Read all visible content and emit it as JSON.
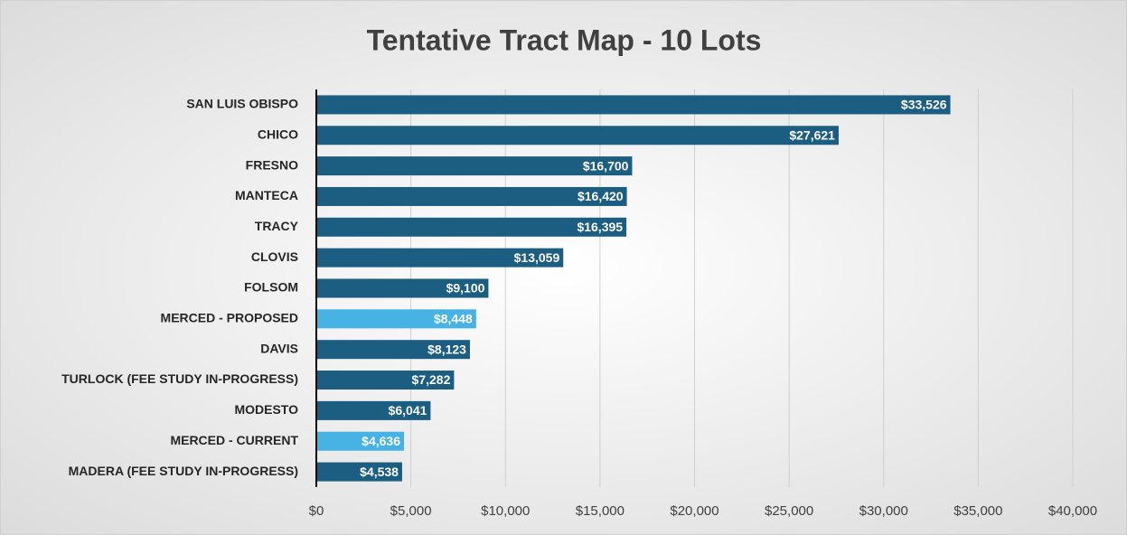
{
  "chart_data": {
    "type": "hbar",
    "title": "Tentative Tract Map - 10 Lots",
    "categories": [
      "SAN LUIS OBISPO",
      "CHICO",
      "FRESNO",
      "MANTECA",
      "TRACY",
      "CLOVIS",
      "FOLSOM",
      "MERCED - PROPOSED",
      "DAVIS",
      "TURLOCK (FEE STUDY IN-PROGRESS)",
      "MODESTO",
      "MERCED - CURRENT",
      "MADERA (FEE STUDY IN-PROGRESS)"
    ],
    "values": [
      33526,
      27621,
      16700,
      16420,
      16395,
      13059,
      9100,
      8448,
      8123,
      7282,
      6041,
      4636,
      4538
    ],
    "value_labels": [
      "$33,526",
      "$27,621",
      "$16,700",
      "$16,420",
      "$16,395",
      "$13,059",
      "$9,100",
      "$8,448",
      "$8,123",
      "$7,282",
      "$6,041",
      "$4,636",
      "$4,538"
    ],
    "colors": [
      "#1b5e82",
      "#1b5e82",
      "#1b5e82",
      "#1b5e82",
      "#1b5e82",
      "#1b5e82",
      "#1b5e82",
      "#47b2e4",
      "#1b5e82",
      "#1b5e82",
      "#1b5e82",
      "#47b2e4",
      "#1b5e82"
    ],
    "xlim": [
      0,
      40000
    ],
    "xticks": [
      {
        "value": 0,
        "label": "$0"
      },
      {
        "value": 5000,
        "label": "$5,000"
      },
      {
        "value": 10000,
        "label": "$10,000"
      },
      {
        "value": 15000,
        "label": "$15,000"
      },
      {
        "value": 20000,
        "label": "$20,000"
      },
      {
        "value": 25000,
        "label": "$25,000"
      },
      {
        "value": 30000,
        "label": "$30,000"
      },
      {
        "value": 35000,
        "label": "$35,000"
      },
      {
        "value": 40000,
        "label": "$40,000"
      }
    ],
    "grid": true
  }
}
